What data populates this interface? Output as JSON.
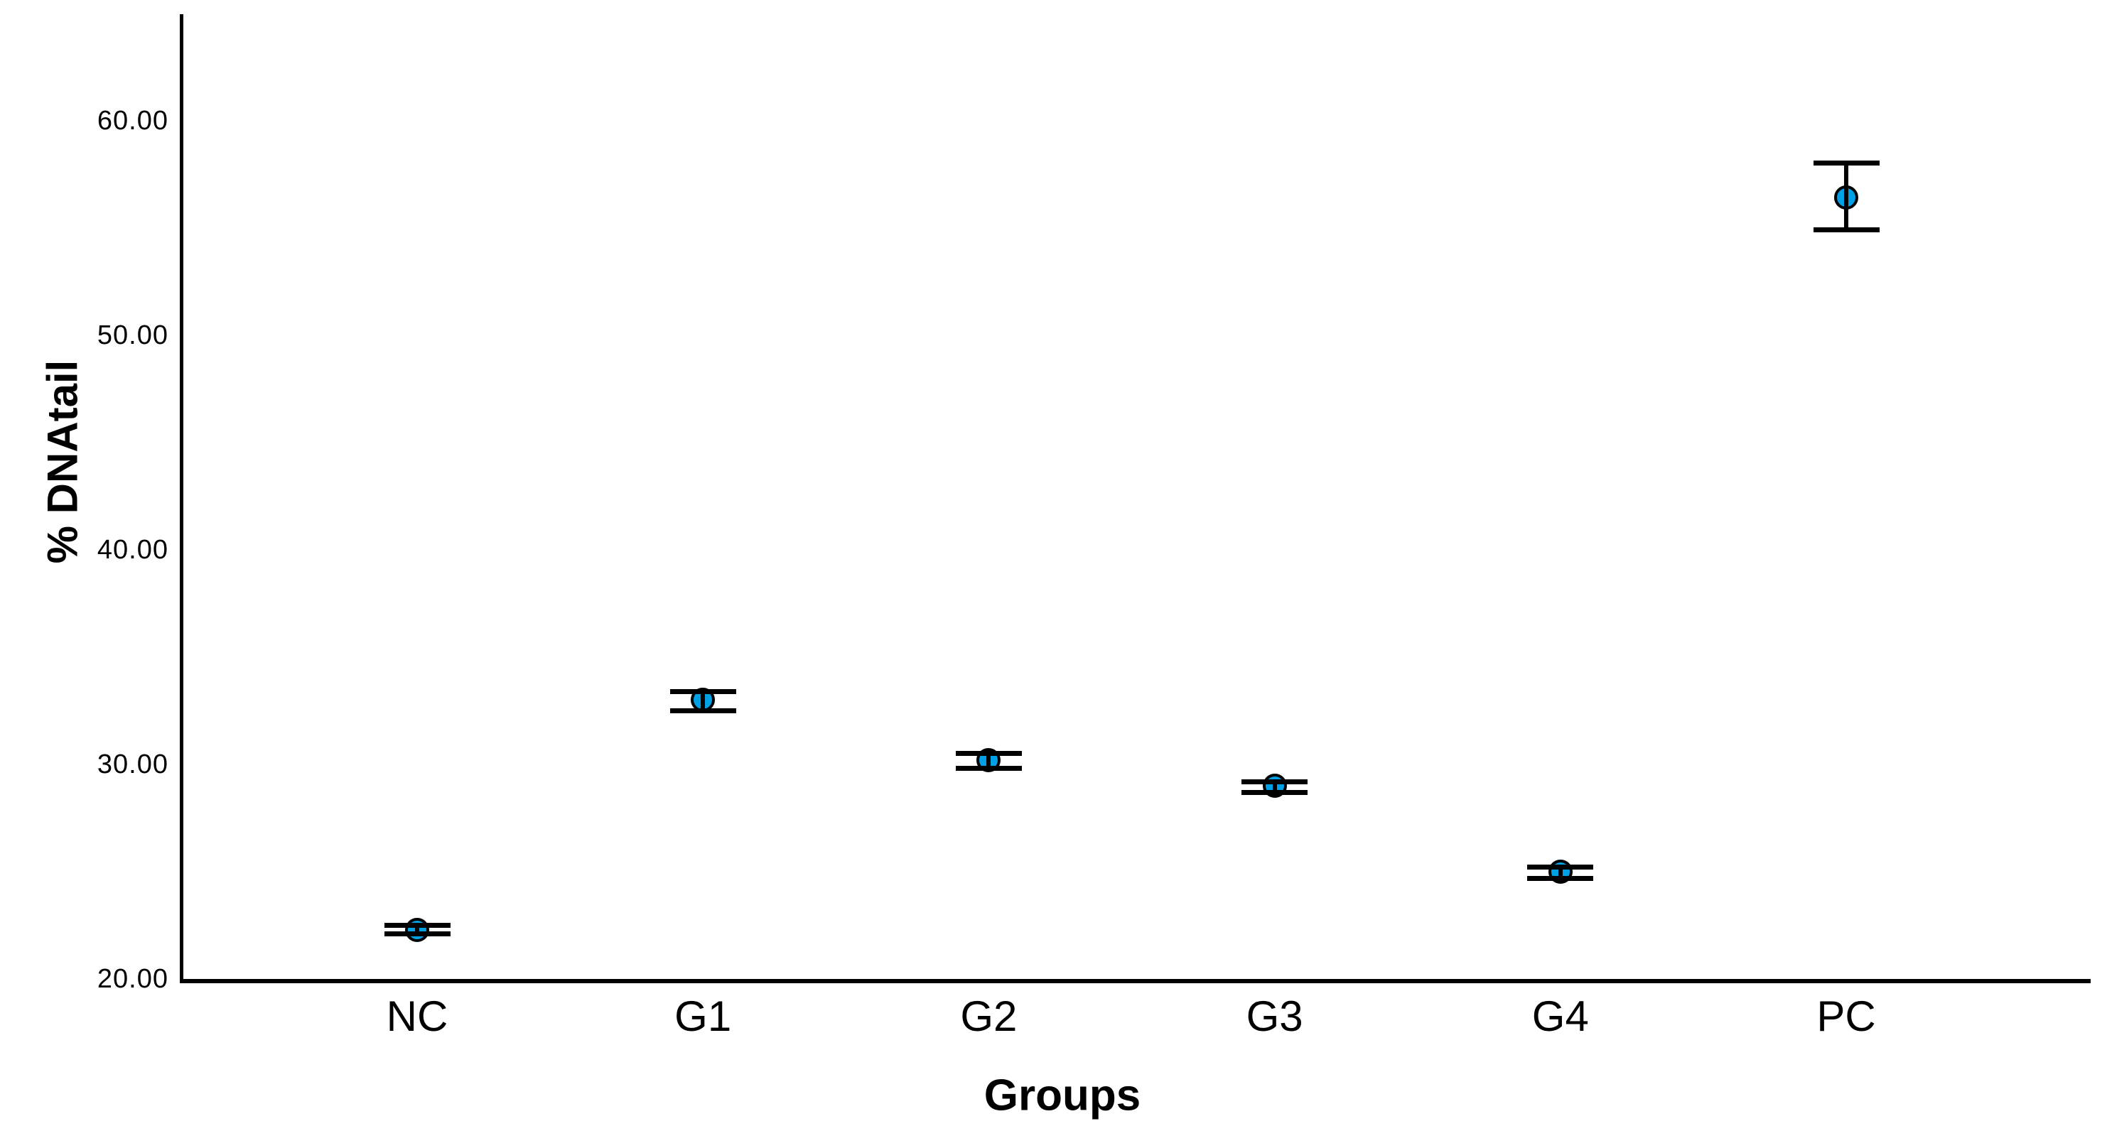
{
  "figure": {
    "background_color": "#ffffff",
    "axis_color": "#000000"
  },
  "chart_data": {
    "type": "scatter",
    "subtype": "mean-errorbar",
    "title": "",
    "xlabel": "Groups",
    "ylabel": "% DNAtail",
    "categories": [
      "NC",
      "G1",
      "G2",
      "G3",
      "G4",
      "PC"
    ],
    "points": [
      {
        "group": "NC",
        "mean": 22.3,
        "low": 22.1,
        "high": 22.5
      },
      {
        "group": "G1",
        "mean": 33.0,
        "low": 32.5,
        "high": 33.4
      },
      {
        "group": "G2",
        "mean": 30.2,
        "low": 29.8,
        "high": 30.5
      },
      {
        "group": "G3",
        "mean": 29.0,
        "low": 28.7,
        "high": 29.2
      },
      {
        "group": "G4",
        "mean": 25.0,
        "low": 24.7,
        "high": 25.2
      },
      {
        "group": "PC",
        "mean": 56.4,
        "low": 54.9,
        "high": 58.0
      }
    ],
    "yticks": {
      "values": [
        20,
        30,
        40,
        50,
        60
      ],
      "labels": [
        "20.00",
        "30.00",
        "40.00",
        "50.00",
        "60.00"
      ]
    },
    "ylim": [
      20,
      64.95
    ],
    "grid": false,
    "legend": false,
    "marker_color": "#00A0E4",
    "marker_outline_color": "#000000",
    "errorbar_color": "#000000"
  }
}
